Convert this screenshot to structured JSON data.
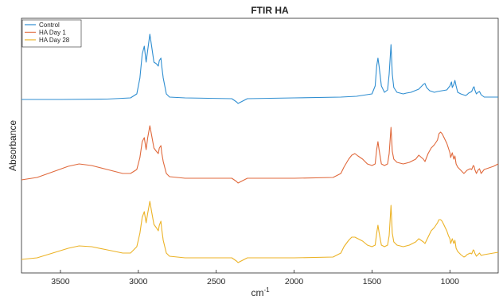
{
  "chart_data": {
    "type": "line",
    "title": "FTIR HA",
    "xlabel": "cm",
    "xlabel_superscript": "-1",
    "ylabel": "Absorbance",
    "xlim": [
      3750,
      690
    ],
    "x_reversed": true,
    "xticks": [
      3500,
      3000,
      2500,
      2000,
      1500,
      1000
    ],
    "yticks_shown": false,
    "grid": false,
    "legend_position": "top-left",
    "series": [
      {
        "name": "Control",
        "color": "#2f8ed1",
        "offset": 2.0,
        "x": [
          3750,
          3500,
          3200,
          3050,
          3010,
          2990,
          2975,
          2962,
          2950,
          2940,
          2926,
          2915,
          2900,
          2885,
          2872,
          2865,
          2855,
          2850,
          2840,
          2820,
          2800,
          2700,
          2400,
          2370,
          2360,
          2340,
          2300,
          2000,
          1700,
          1600,
          1500,
          1480,
          1470,
          1462,
          1455,
          1440,
          1420,
          1400,
          1390,
          1378,
          1370,
          1360,
          1340,
          1300,
          1280,
          1250,
          1200,
          1170,
          1160,
          1150,
          1130,
          1100,
          1080,
          1050,
          1020,
          1000,
          990,
          985,
          975,
          968,
          960,
          950,
          930,
          900,
          890,
          880,
          870,
          860,
          850,
          845,
          840,
          830,
          820,
          810,
          800,
          780,
          750,
          720,
          690
        ],
        "y": [
          0.03,
          0.03,
          0.035,
          0.05,
          0.1,
          0.3,
          0.6,
          0.7,
          0.5,
          0.65,
          0.85,
          0.7,
          0.5,
          0.48,
          0.45,
          0.52,
          0.55,
          0.45,
          0.3,
          0.1,
          0.06,
          0.05,
          0.04,
          0.0,
          -0.02,
          0.0,
          0.04,
          0.05,
          0.06,
          0.07,
          0.1,
          0.2,
          0.45,
          0.55,
          0.45,
          0.2,
          0.12,
          0.15,
          0.35,
          0.72,
          0.35,
          0.18,
          0.12,
          0.1,
          0.11,
          0.12,
          0.16,
          0.22,
          0.23,
          0.18,
          0.14,
          0.12,
          0.13,
          0.14,
          0.15,
          0.2,
          0.25,
          0.18,
          0.22,
          0.27,
          0.2,
          0.12,
          0.1,
          0.08,
          0.09,
          0.11,
          0.12,
          0.13,
          0.18,
          0.19,
          0.15,
          0.1,
          0.12,
          0.13,
          0.09,
          0.06,
          0.06,
          0.06,
          0.06
        ]
      },
      {
        "name": "HA Day 1",
        "color": "#e0693c",
        "offset": 1.0,
        "x": [
          3750,
          3650,
          3550,
          3450,
          3380,
          3300,
          3200,
          3100,
          3050,
          3010,
          2990,
          2975,
          2962,
          2950,
          2940,
          2926,
          2915,
          2900,
          2885,
          2872,
          2865,
          2855,
          2850,
          2840,
          2820,
          2800,
          2700,
          2400,
          2370,
          2360,
          2340,
          2300,
          2000,
          1750,
          1700,
          1680,
          1650,
          1630,
          1610,
          1590,
          1560,
          1530,
          1500,
          1480,
          1470,
          1462,
          1455,
          1440,
          1420,
          1400,
          1390,
          1378,
          1370,
          1360,
          1340,
          1300,
          1260,
          1220,
          1200,
          1170,
          1160,
          1140,
          1120,
          1100,
          1080,
          1070,
          1060,
          1050,
          1040,
          1030,
          1020,
          1010,
          1000,
          995,
          985,
          975,
          968,
          960,
          950,
          930,
          910,
          900,
          890,
          870,
          860,
          850,
          845,
          840,
          830,
          820,
          810,
          800,
          780,
          750,
          720,
          690
        ],
        "y": [
          0.02,
          0.05,
          0.12,
          0.19,
          0.22,
          0.2,
          0.15,
          0.1,
          0.1,
          0.15,
          0.3,
          0.5,
          0.55,
          0.4,
          0.55,
          0.7,
          0.58,
          0.42,
          0.38,
          0.35,
          0.42,
          0.45,
          0.36,
          0.25,
          0.1,
          0.06,
          0.04,
          0.04,
          0.0,
          -0.02,
          0.0,
          0.04,
          0.04,
          0.05,
          0.1,
          0.18,
          0.28,
          0.33,
          0.35,
          0.32,
          0.28,
          0.22,
          0.2,
          0.22,
          0.4,
          0.5,
          0.4,
          0.22,
          0.2,
          0.22,
          0.35,
          0.68,
          0.38,
          0.28,
          0.24,
          0.22,
          0.24,
          0.28,
          0.33,
          0.28,
          0.25,
          0.35,
          0.42,
          0.46,
          0.52,
          0.6,
          0.62,
          0.6,
          0.56,
          0.52,
          0.48,
          0.42,
          0.36,
          0.3,
          0.36,
          0.28,
          0.32,
          0.22,
          0.18,
          0.14,
          0.1,
          0.12,
          0.14,
          0.16,
          0.15,
          0.2,
          0.19,
          0.15,
          0.1,
          0.14,
          0.16,
          0.1,
          0.15,
          0.17,
          0.19,
          0.22
        ]
      },
      {
        "name": "HA Day 28",
        "color": "#ecb327",
        "offset": 0.0,
        "x": [
          3750,
          3650,
          3550,
          3450,
          3380,
          3300,
          3200,
          3100,
          3050,
          3010,
          2990,
          2975,
          2962,
          2950,
          2940,
          2926,
          2915,
          2900,
          2885,
          2872,
          2865,
          2855,
          2850,
          2840,
          2820,
          2800,
          2700,
          2400,
          2370,
          2360,
          2340,
          2300,
          2000,
          1750,
          1700,
          1680,
          1650,
          1630,
          1610,
          1590,
          1560,
          1530,
          1500,
          1480,
          1470,
          1462,
          1455,
          1440,
          1420,
          1400,
          1390,
          1378,
          1370,
          1360,
          1340,
          1300,
          1260,
          1220,
          1200,
          1170,
          1160,
          1140,
          1120,
          1100,
          1080,
          1070,
          1060,
          1050,
          1040,
          1030,
          1020,
          1010,
          1000,
          995,
          985,
          975,
          968,
          960,
          950,
          930,
          910,
          900,
          890,
          870,
          860,
          850,
          845,
          840,
          830,
          820,
          810,
          800,
          780,
          750,
          720,
          690
        ],
        "y": [
          0.02,
          0.04,
          0.1,
          0.16,
          0.19,
          0.18,
          0.14,
          0.1,
          0.1,
          0.18,
          0.35,
          0.55,
          0.62,
          0.48,
          0.6,
          0.75,
          0.62,
          0.46,
          0.42,
          0.38,
          0.45,
          0.5,
          0.4,
          0.26,
          0.1,
          0.06,
          0.04,
          0.04,
          0.0,
          -0.02,
          0.0,
          0.04,
          0.04,
          0.05,
          0.1,
          0.18,
          0.26,
          0.3,
          0.3,
          0.28,
          0.25,
          0.2,
          0.18,
          0.2,
          0.35,
          0.45,
          0.36,
          0.2,
          0.18,
          0.2,
          0.32,
          0.7,
          0.35,
          0.24,
          0.2,
          0.18,
          0.2,
          0.24,
          0.28,
          0.24,
          0.22,
          0.3,
          0.38,
          0.42,
          0.48,
          0.52,
          0.52,
          0.5,
          0.46,
          0.42,
          0.38,
          0.32,
          0.28,
          0.22,
          0.28,
          0.22,
          0.26,
          0.16,
          0.12,
          0.08,
          0.05,
          0.06,
          0.08,
          0.1,
          0.09,
          0.14,
          0.13,
          0.1,
          0.06,
          0.08,
          0.1,
          0.07,
          0.08,
          0.09,
          0.1,
          0.11
        ]
      }
    ]
  }
}
